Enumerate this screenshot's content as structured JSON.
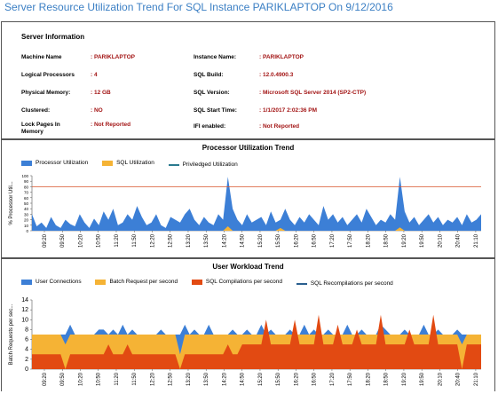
{
  "page_title": "Server Resource Utilization Trend For SQL Instance PARIKLAPTOP On 9/12/2016",
  "server_info": {
    "heading": "Server Information",
    "rows": [
      {
        "label": "Machine Name",
        "value": ": PARIKLAPTOP"
      },
      {
        "label": "Logical Processors",
        "value": ": 4"
      },
      {
        "label": "Physical Memory:",
        "value": ": 12 GB"
      },
      {
        "label": "Clustered:",
        "value": ": NO"
      },
      {
        "label": "Lock Pages In Memory",
        "value": ": Not Reported"
      },
      {
        "label": "Instance Name:",
        "value": ": PARIKLAPTOP"
      },
      {
        "label": "SQL Build:",
        "value": ": 12.0.4900.3"
      },
      {
        "label": "SQL Version:",
        "value": ": Microsoft SQL Server 2014 (SP2-CTP)"
      },
      {
        "label": "SQL Start Time:",
        "value": ": 1/1/2017 2:02:36 PM"
      },
      {
        "label": "IFI enabled:",
        "value": ": Not Reported"
      }
    ]
  },
  "processor_chart": {
    "title": "Processor Utilization Trend",
    "legend": [
      {
        "name": "Processor Utilization",
        "color": "#3c7fd6",
        "kind": "area"
      },
      {
        "name": "SQL Utilization",
        "color": "#f5b335",
        "kind": "area"
      },
      {
        "name": "Priviledged Utilization",
        "color": "#2a7a8f",
        "kind": "line"
      }
    ],
    "ylabel": "% Processor Util...",
    "yticks": [
      0,
      10,
      20,
      30,
      40,
      50,
      60,
      70,
      80,
      90,
      100
    ],
    "xticks": [
      "09:20",
      "09:50",
      "10:20",
      "10:50",
      "11:20",
      "11:50",
      "12:20",
      "12:50",
      "13:20",
      "13:50",
      "14:20",
      "14:50",
      "15:20",
      "15:50",
      "16:20",
      "16:50",
      "17:20",
      "17:50",
      "18:20",
      "18:50",
      "19:20",
      "19:50",
      "20:10",
      "20:40",
      "21:10"
    ],
    "threshold": 80,
    "threshold_color": "#d9532c"
  },
  "workload_chart": {
    "title": "User Workload Trend",
    "legend": [
      {
        "name": "User Connections",
        "color": "#3c7fd6",
        "kind": "area"
      },
      {
        "name": "Batch Request per second",
        "color": "#f5b335",
        "kind": "area"
      },
      {
        "name": "SQL Compilations per second",
        "color": "#e24a12",
        "kind": "area"
      },
      {
        "name": "SQL Recompilations per second",
        "color": "#2a5f8f",
        "kind": "line"
      }
    ],
    "ylabel": "Batch Requests per sec...",
    "yticks": [
      0,
      2,
      4,
      6,
      8,
      10,
      12,
      14
    ],
    "xticks": [
      "09:20",
      "09:50",
      "10:20",
      "10:50",
      "11:20",
      "11:50",
      "12:20",
      "12:50",
      "13:20",
      "13:50",
      "14:20",
      "14:50",
      "15:20",
      "15:50",
      "16:20",
      "16:50",
      "17:20",
      "17:50",
      "18:20",
      "18:50",
      "19:20",
      "19:50",
      "20:10",
      "20:40",
      "21:10"
    ]
  },
  "chart_data": [
    {
      "type": "area",
      "title": "Processor Utilization Trend",
      "ylabel": "% Processor Util...",
      "ylim": [
        0,
        100
      ],
      "series": [
        {
          "name": "Processor Utilization",
          "values": [
            30,
            8,
            15,
            5,
            25,
            10,
            5,
            20,
            12,
            8,
            30,
            15,
            5,
            22,
            10,
            35,
            20,
            40,
            10,
            15,
            30,
            20,
            45,
            25,
            10,
            15,
            30,
            10,
            5,
            25,
            20,
            15,
            30,
            40,
            20,
            10,
            25,
            15,
            10,
            30,
            20,
            98,
            40,
            20,
            10,
            30,
            15,
            20,
            25,
            10,
            35,
            15,
            20,
            40,
            20,
            10,
            25,
            15,
            30,
            20,
            10,
            45,
            20,
            30,
            15,
            25,
            10,
            20,
            30,
            15,
            40,
            25,
            10,
            20,
            15,
            30,
            20,
            98,
            35,
            15,
            25,
            10,
            20,
            30,
            15,
            25,
            10,
            20,
            15,
            25,
            10,
            30,
            15,
            20,
            30
          ]
        },
        {
          "name": "SQL Utilization",
          "values": [
            0,
            0,
            0,
            0,
            0,
            0,
            0,
            0,
            0,
            0,
            0,
            0,
            0,
            0,
            0,
            0,
            0,
            0,
            0,
            0,
            0,
            0,
            0,
            0,
            0,
            0,
            0,
            0,
            0,
            0,
            0,
            0,
            0,
            0,
            0,
            0,
            0,
            0,
            0,
            0,
            0,
            8,
            0,
            0,
            0,
            0,
            0,
            0,
            0,
            0,
            0,
            0,
            5,
            0,
            0,
            0,
            0,
            0,
            0,
            0,
            0,
            0,
            0,
            0,
            0,
            0,
            0,
            0,
            0,
            0,
            0,
            0,
            0,
            0,
            0,
            0,
            0,
            6,
            0,
            0,
            0,
            0,
            0,
            0,
            0,
            0,
            0,
            0,
            0,
            0,
            0,
            0,
            0,
            0,
            0
          ]
        }
      ]
    },
    {
      "type": "area",
      "title": "User Workload Trend",
      "ylabel": "Batch Requests per sec...",
      "ylim": [
        0,
        14
      ],
      "series": [
        {
          "name": "User Connections",
          "values": [
            7,
            7,
            7,
            7,
            7,
            7,
            7,
            7,
            9,
            7,
            7,
            7,
            7,
            7,
            8,
            8,
            7,
            8,
            7,
            9,
            7,
            8,
            7,
            7,
            7,
            7,
            7,
            8,
            7,
            7,
            7,
            7,
            9,
            7,
            8,
            7,
            7,
            9,
            7,
            7,
            7,
            7,
            8,
            7,
            7,
            8,
            7,
            7,
            9,
            7,
            8,
            7,
            7,
            7,
            8,
            7,
            7,
            9,
            7,
            8,
            7,
            7,
            8,
            7,
            7,
            7,
            9,
            7,
            7,
            8,
            7,
            7,
            7,
            9,
            8,
            7,
            7,
            7,
            8,
            7,
            7,
            7,
            9,
            7,
            7,
            8,
            7,
            7,
            7,
            8,
            7,
            7,
            7,
            7,
            7
          ]
        },
        {
          "name": "Batch Request per second",
          "values": [
            7,
            7,
            7,
            7,
            7,
            7,
            7,
            5,
            7,
            7,
            7,
            7,
            7,
            7,
            7,
            7,
            7,
            7,
            7,
            7,
            7,
            7,
            7,
            7,
            7,
            7,
            7,
            7,
            7,
            7,
            7,
            3,
            7,
            7,
            7,
            7,
            7,
            7,
            7,
            7,
            7,
            7,
            7,
            7,
            7,
            7,
            7,
            7,
            7,
            7,
            7,
            7,
            7,
            7,
            7,
            7,
            7,
            7,
            7,
            7,
            7,
            7,
            7,
            7,
            7,
            7,
            7,
            7,
            7,
            7,
            7,
            7,
            7,
            7,
            7,
            7,
            7,
            7,
            7,
            7,
            7,
            7,
            7,
            7,
            7,
            7,
            7,
            7,
            7,
            7,
            5,
            7,
            7,
            7,
            7
          ]
        },
        {
          "name": "SQL Compilations per second",
          "values": [
            3,
            3,
            3,
            3,
            3,
            3,
            3,
            0,
            3,
            3,
            3,
            3,
            3,
            3,
            3,
            3,
            5,
            3,
            3,
            3,
            5,
            3,
            3,
            3,
            3,
            3,
            3,
            3,
            3,
            3,
            3,
            0,
            3,
            3,
            3,
            3,
            3,
            3,
            3,
            3,
            3,
            5,
            3,
            3,
            5,
            5,
            5,
            5,
            5,
            10,
            5,
            5,
            5,
            5,
            5,
            10,
            5,
            5,
            5,
            5,
            11,
            5,
            5,
            5,
            9,
            5,
            5,
            5,
            8,
            5,
            5,
            5,
            5,
            11,
            5,
            5,
            5,
            5,
            5,
            8,
            5,
            5,
            5,
            5,
            11,
            5,
            5,
            5,
            5,
            5,
            0,
            5,
            5,
            5,
            5
          ]
        }
      ]
    }
  ]
}
